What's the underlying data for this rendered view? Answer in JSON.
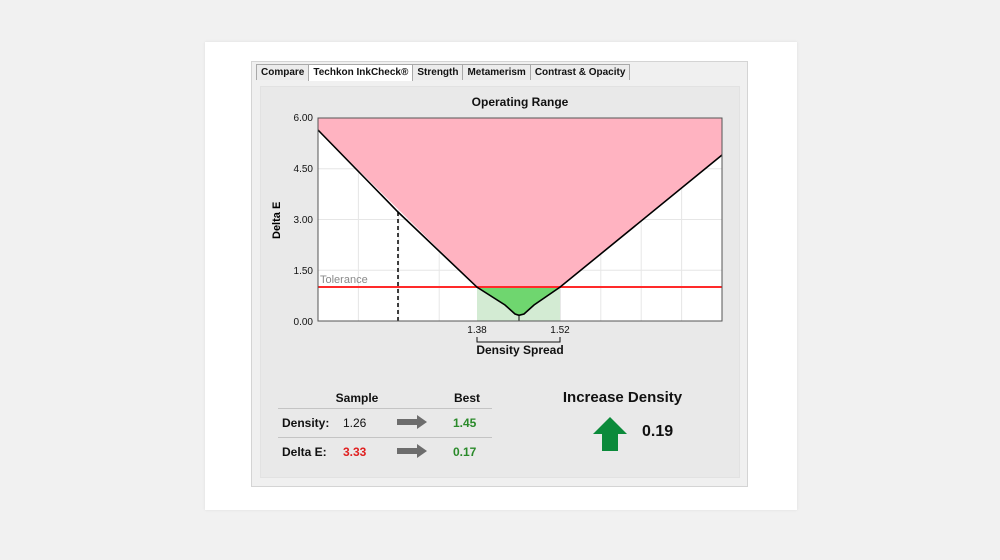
{
  "tabs": [
    "Compare",
    "Techkon InkCheck®",
    "Strength",
    "Metamerism",
    "Contrast & Opacity"
  ],
  "active_tab": 1,
  "chart_data": {
    "type": "line",
    "title": "Operating Range",
    "xlabel": "Density Spread",
    "ylabel": "Delta E",
    "y_ticks": [
      "6.00",
      "4.50",
      "3.00",
      "1.50",
      "0.00"
    ],
    "ylim": [
      0,
      6
    ],
    "x_marker_labels": [
      "1.38",
      "1.52"
    ],
    "tolerance_label": "Tolerance",
    "tolerance": 1.0,
    "curve_min": 0.17,
    "best_density": 1.45,
    "sample_delta_e": 3.33,
    "grid": true,
    "colors": {
      "out_of_tolerance": "#ffb3c1",
      "in_tolerance": "#6fd66f",
      "tolerance_line": "#ff2a2a",
      "curve": "#000000"
    }
  },
  "stats": {
    "sample_header": "Sample",
    "best_header": "Best",
    "rows": [
      {
        "label": "Density:",
        "sample": "1.26",
        "best": "1.45"
      },
      {
        "label": "Delta E:",
        "sample": "3.33",
        "best": "0.17"
      }
    ]
  },
  "advice": {
    "title": "Increase Density",
    "value": "0.19",
    "icon": "arrow-up-icon",
    "color": "#0b8a3a"
  }
}
